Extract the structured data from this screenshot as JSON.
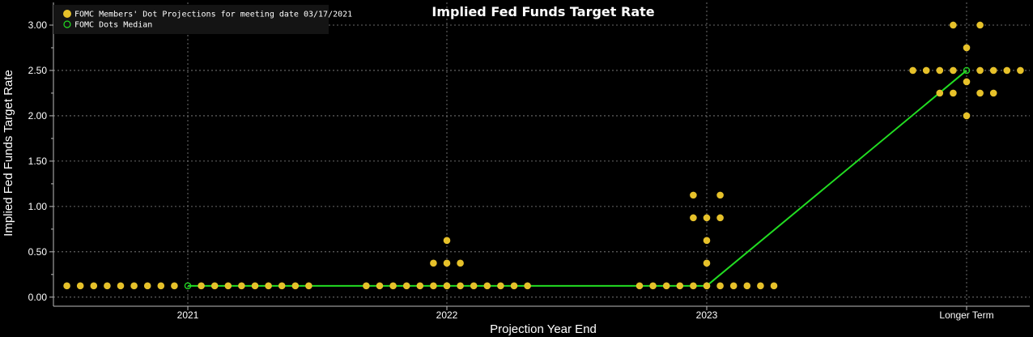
{
  "chart_data": {
    "type": "scatter",
    "title": "Implied Fed Funds Target Rate",
    "xlabel": "Projection Year End",
    "ylabel": "Implied Fed Funds Target Rate",
    "categories": [
      "2021",
      "2022",
      "2023",
      "Longer Term"
    ],
    "ylim": [
      -0.1,
      3.25
    ],
    "yticks": [
      "0.00",
      "0.50",
      "1.00",
      "1.50",
      "2.00",
      "2.50",
      "3.00"
    ],
    "grid": true,
    "legend_position": "top-left",
    "colors": {
      "background": "#000000",
      "dots": "#e6c12a",
      "median": "#22dd22",
      "grid": "#8a8a8a",
      "axis": "#bbbbbb"
    },
    "series": [
      {
        "name": "FOMC Members' Dot Projections for meeting date 03/17/2021",
        "kind": "dots",
        "points": [
          {
            "category": "2021",
            "value": 0.125,
            "count": 18
          },
          {
            "category": "2022",
            "value": 0.125,
            "count": 13
          },
          {
            "category": "2022",
            "value": 0.375,
            "count": 3
          },
          {
            "category": "2022",
            "value": 0.625,
            "count": 1
          },
          {
            "category": "2023",
            "value": 0.125,
            "count": 11
          },
          {
            "category": "2023",
            "value": 0.375,
            "count": 1
          },
          {
            "category": "2023",
            "value": 0.625,
            "count": 1
          },
          {
            "category": "2023",
            "value": 0.875,
            "count": 3
          },
          {
            "category": "2023",
            "value": 1.125,
            "count": 2
          },
          {
            "category": "Longer Term",
            "value": 2.0,
            "count": 1
          },
          {
            "category": "Longer Term",
            "value": 2.25,
            "count": 4
          },
          {
            "category": "Longer Term",
            "value": 2.375,
            "count": 1
          },
          {
            "category": "Longer Term",
            "value": 2.5,
            "count": 8
          },
          {
            "category": "Longer Term",
            "value": 2.75,
            "count": 1
          },
          {
            "category": "Longer Term",
            "value": 3.0,
            "count": 2
          }
        ]
      },
      {
        "name": "FOMC Dots Median",
        "kind": "line",
        "values": [
          0.125,
          0.125,
          0.125,
          2.5
        ]
      }
    ]
  }
}
